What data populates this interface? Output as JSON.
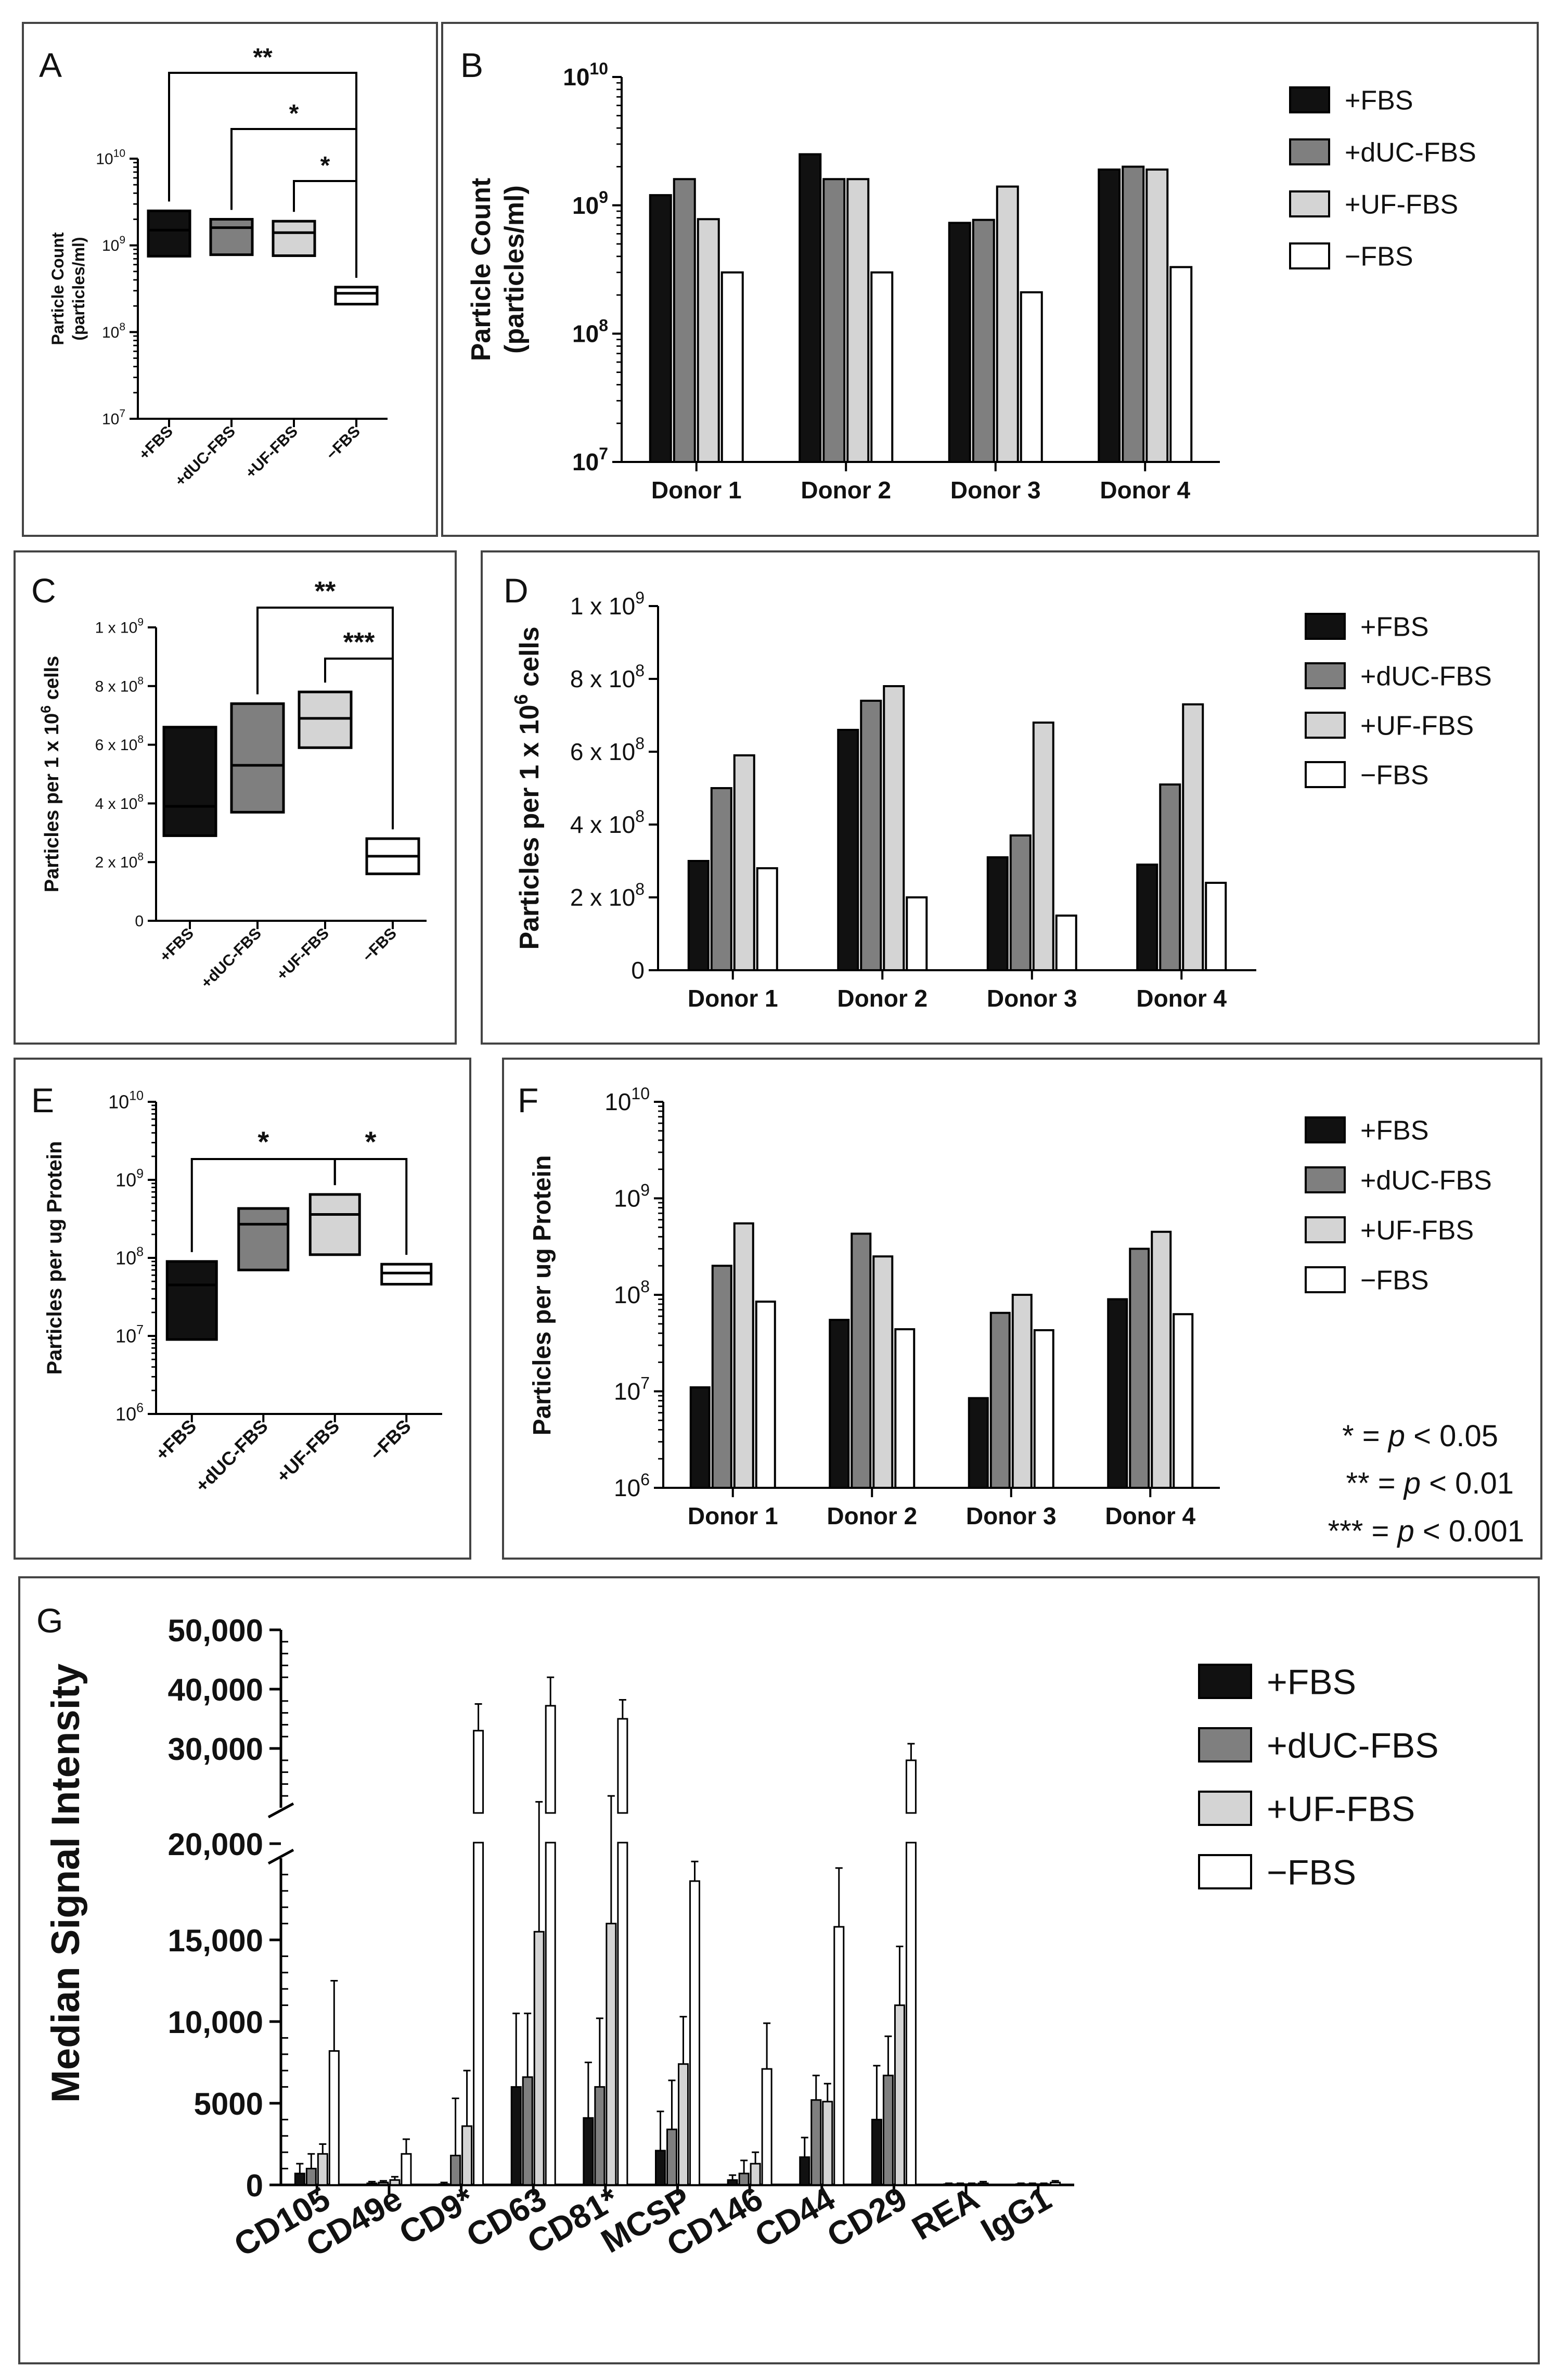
{
  "colors": {
    "fbs": "#111111",
    "duc": "#7f7f7f",
    "uf": "#d4d4d4",
    "neg": "#ffffff",
    "stroke": "#000000",
    "frame": "#444444"
  },
  "legend_labels": [
    "+FBS",
    "+dUC-FBS",
    "+UF-FBS",
    "−FBS"
  ],
  "pvalue_legend": [
    {
      "stars": "* = ",
      "p": "p",
      "rest": " < 0.05"
    },
    {
      "stars": "** = ",
      "p": "p",
      "rest": " < 0.01"
    },
    {
      "stars": "*** = ",
      "p": "p",
      "rest": " < 0.001"
    }
  ],
  "chart_data": [
    {
      "panel": "A",
      "type": "box",
      "ylabel": [
        "Particle Count",
        "(particles/ml)"
      ],
      "scale": "log",
      "ylim": [
        10000000.0,
        10000000000.0
      ],
      "yticks": [
        {
          "v": 10000000.0,
          "base": "10",
          "exp": "7"
        },
        {
          "v": 100000000.0,
          "base": "10",
          "exp": "8"
        },
        {
          "v": 1000000000.0,
          "base": "10",
          "exp": "9"
        },
        {
          "v": 10000000000.0,
          "base": "10",
          "exp": "10"
        }
      ],
      "categories": [
        "+FBS",
        "+dUC-FBS",
        "+UF-FBS",
        "−FBS"
      ],
      "boxes": [
        {
          "min": 750000000.0,
          "median": 1500000000.0,
          "max": 2500000000.0
        },
        {
          "min": 780000000.0,
          "median": 1600000000.0,
          "max": 2000000000.0
        },
        {
          "min": 760000000.0,
          "median": 1400000000.0,
          "max": 1900000000.0
        },
        {
          "min": 210000000.0,
          "median": 280000000.0,
          "max": 330000000.0
        }
      ],
      "brackets": [
        {
          "from": 0,
          "to": 3,
          "label": "**"
        },
        {
          "from": 1,
          "to": 3,
          "label": "*"
        },
        {
          "from": 2,
          "to": 3,
          "label": "*"
        }
      ]
    },
    {
      "panel": "B",
      "type": "bar",
      "ylabel": [
        "Particle Count",
        "(particles/ml)"
      ],
      "scale": "log",
      "ylim": [
        10000000.0,
        10000000000.0
      ],
      "yticks": [
        {
          "v": 10000000.0,
          "base": "10",
          "exp": "7"
        },
        {
          "v": 100000000.0,
          "base": "10",
          "exp": "8"
        },
        {
          "v": 1000000000.0,
          "base": "10",
          "exp": "9"
        },
        {
          "v": 10000000000.0,
          "base": "10",
          "exp": "10"
        }
      ],
      "categories": [
        "Donor 1",
        "Donor 2",
        "Donor 3",
        "Donor 4"
      ],
      "series": [
        {
          "name": "+FBS",
          "values": [
            1200000000.0,
            2500000000.0,
            730000000.0,
            1900000000.0
          ]
        },
        {
          "name": "+dUC-FBS",
          "values": [
            1600000000.0,
            1600000000.0,
            770000000.0,
            2000000000.0
          ]
        },
        {
          "name": "+UF-FBS",
          "values": [
            780000000.0,
            1600000000.0,
            1400000000.0,
            1900000000.0
          ]
        },
        {
          "name": "−FBS",
          "values": [
            300000000.0,
            300000000.0,
            210000000.0,
            330000000.0
          ]
        }
      ]
    },
    {
      "panel": "C",
      "type": "box",
      "ylabel": [
        "Particles per 1 x 10",
        "6",
        " cells"
      ],
      "scale": "linear",
      "ylim": [
        0,
        1000000000.0
      ],
      "yticks": [
        {
          "v": 0,
          "text": "0"
        },
        {
          "v": 200000000.0,
          "base": "2 x 10",
          "exp": "8"
        },
        {
          "v": 400000000.0,
          "base": "4 x 10",
          "exp": "8"
        },
        {
          "v": 600000000.0,
          "base": "6 x 10",
          "exp": "8"
        },
        {
          "v": 800000000.0,
          "base": "8 x 10",
          "exp": "8"
        },
        {
          "v": 1000000000.0,
          "base": "1 x 10",
          "exp": "9"
        }
      ],
      "categories": [
        "+FBS",
        "+dUC-FBS",
        "+UF-FBS",
        "−FBS"
      ],
      "boxes": [
        {
          "min": 290000000.0,
          "median": 390000000.0,
          "max": 660000000.0
        },
        {
          "min": 370000000.0,
          "median": 530000000.0,
          "max": 740000000.0
        },
        {
          "min": 590000000.0,
          "median": 690000000.0,
          "max": 780000000.0
        },
        {
          "min": 160000000.0,
          "median": 220000000.0,
          "max": 280000000.0
        }
      ],
      "brackets": [
        {
          "from": 1,
          "to": 3,
          "label": "**"
        },
        {
          "from": 2,
          "to": 3,
          "label": "***"
        }
      ]
    },
    {
      "panel": "D",
      "type": "bar",
      "ylabel": [
        "Particles per 1 x 10",
        "6",
        " cells"
      ],
      "scale": "linear",
      "ylim": [
        0,
        1000000000.0
      ],
      "yticks": [
        {
          "v": 0,
          "text": "0"
        },
        {
          "v": 200000000.0,
          "base": "2 x 10",
          "exp": "8"
        },
        {
          "v": 400000000.0,
          "base": "4 x 10",
          "exp": "8"
        },
        {
          "v": 600000000.0,
          "base": "6 x 10",
          "exp": "8"
        },
        {
          "v": 800000000.0,
          "base": "8 x 10",
          "exp": "8"
        },
        {
          "v": 1000000000.0,
          "base": "1 x 10",
          "exp": "9"
        }
      ],
      "categories": [
        "Donor 1",
        "Donor 2",
        "Donor 3",
        "Donor 4"
      ],
      "series": [
        {
          "name": "+FBS",
          "values": [
            300000000.0,
            660000000.0,
            310000000.0,
            290000000.0
          ]
        },
        {
          "name": "+dUC-FBS",
          "values": [
            500000000.0,
            740000000.0,
            370000000.0,
            510000000.0
          ]
        },
        {
          "name": "+UF-FBS",
          "values": [
            590000000.0,
            780000000.0,
            680000000.0,
            730000000.0
          ]
        },
        {
          "name": "−FBS",
          "values": [
            280000000.0,
            200000000.0,
            150000000.0,
            240000000.0
          ]
        }
      ]
    },
    {
      "panel": "E",
      "type": "box",
      "ylabel": [
        "Particles per ug Protein"
      ],
      "scale": "log",
      "ylim": [
        1000000.0,
        10000000000.0
      ],
      "yticks": [
        {
          "v": 1000000.0,
          "base": "10",
          "exp": "6"
        },
        {
          "v": 10000000.0,
          "base": "10",
          "exp": "7"
        },
        {
          "v": 100000000.0,
          "base": "10",
          "exp": "8"
        },
        {
          "v": 1000000000.0,
          "base": "10",
          "exp": "9"
        },
        {
          "v": 10000000000.0,
          "base": "10",
          "exp": "10"
        }
      ],
      "categories": [
        "+FBS",
        "+dUC-FBS",
        "+UF-FBS",
        "−FBS"
      ],
      "boxes": [
        {
          "min": 9000000.0,
          "median": 45000000.0,
          "max": 90000000.0
        },
        {
          "min": 70000000.0,
          "median": 270000000.0,
          "max": 430000000.0
        },
        {
          "min": 110000000.0,
          "median": 360000000.0,
          "max": 650000000.0
        },
        {
          "min": 46000000.0,
          "median": 64000000.0,
          "max": 83000000.0
        }
      ],
      "brackets": [
        {
          "from": 0,
          "to": 2,
          "label": "*"
        },
        {
          "from": 2,
          "to": 3,
          "label": "*"
        }
      ]
    },
    {
      "panel": "F",
      "type": "bar",
      "ylabel": [
        "Particles per ug Protein"
      ],
      "scale": "log",
      "ylim": [
        1000000.0,
        10000000000.0
      ],
      "yticks": [
        {
          "v": 1000000.0,
          "base": "10",
          "exp": "6"
        },
        {
          "v": 10000000.0,
          "base": "10",
          "exp": "7"
        },
        {
          "v": 100000000.0,
          "base": "10",
          "exp": "8"
        },
        {
          "v": 1000000000.0,
          "base": "10",
          "exp": "9"
        },
        {
          "v": 10000000000.0,
          "base": "10",
          "exp": "10"
        }
      ],
      "categories": [
        "Donor 1",
        "Donor 2",
        "Donor 3",
        "Donor 4"
      ],
      "series": [
        {
          "name": "+FBS",
          "values": [
            11000000.0,
            55000000.0,
            8500000.0,
            90000000.0
          ]
        },
        {
          "name": "+dUC-FBS",
          "values": [
            200000000.0,
            430000000.0,
            65000000.0,
            300000000.0
          ]
        },
        {
          "name": "+UF-FBS",
          "values": [
            550000000.0,
            250000000.0,
            100000000.0,
            450000000.0
          ]
        },
        {
          "name": "−FBS",
          "values": [
            85000000.0,
            44000000.0,
            43000000.0,
            63000000.0
          ]
        }
      ]
    },
    {
      "panel": "G",
      "type": "bar",
      "ylabel": [
        "Median Signal Intensity"
      ],
      "scale": "broken-linear",
      "lower_ylim": [
        0,
        20000
      ],
      "upper_ylim": [
        20000,
        50000
      ],
      "yticks": [
        {
          "v": 0,
          "text": "0"
        },
        {
          "v": 5000,
          "text": "5000"
        },
        {
          "v": 10000,
          "text": "10,000"
        },
        {
          "v": 15000,
          "text": "15,000"
        },
        {
          "v": 20000,
          "text": "20,000"
        },
        {
          "v": 30000,
          "text": "30,000"
        },
        {
          "v": 40000,
          "text": "40,000"
        },
        {
          "v": 50000,
          "text": "50,000"
        }
      ],
      "categories": [
        "CD105",
        "CD49e",
        "CD9*",
        "CD63",
        "CD81*",
        "MCSP",
        "CD146",
        "CD44",
        "CD29",
        "REA",
        "IgG1"
      ],
      "series": [
        {
          "name": "+FBS",
          "values": [
            700,
            100,
            50,
            6000,
            4100,
            2100,
            300,
            1700,
            4000,
            50,
            50
          ],
          "errors": [
            600,
            100,
            100,
            4500,
            3400,
            2400,
            300,
            1200,
            3300,
            50,
            50
          ]
        },
        {
          "name": "+dUC-FBS",
          "values": [
            1000,
            150,
            1800,
            6600,
            6000,
            3400,
            700,
            5200,
            6700,
            50,
            50
          ],
          "errors": [
            900,
            100,
            3500,
            3900,
            4200,
            3000,
            800,
            1500,
            2400,
            50,
            50
          ]
        },
        {
          "name": "+UF-FBS",
          "values": [
            1900,
            300,
            3600,
            15500,
            16000,
            7400,
            1300,
            5100,
            11000,
            50,
            50
          ],
          "errors": [
            600,
            200,
            3400,
            5500,
            6000,
            2900,
            700,
            1100,
            3600,
            50,
            50
          ]
        },
        {
          "name": "−FBS",
          "values": [
            8200,
            1900,
            33000,
            37200,
            35000,
            18600,
            7100,
            15800,
            28000,
            100,
            150
          ],
          "errors": [
            4300,
            900,
            4500,
            4800,
            3200,
            1200,
            2800,
            3600,
            2800,
            100,
            100
          ]
        }
      ]
    }
  ]
}
